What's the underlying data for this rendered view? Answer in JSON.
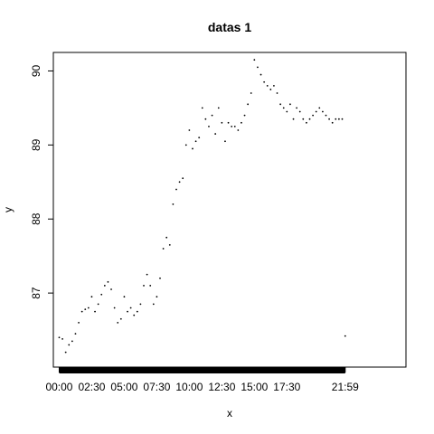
{
  "chart_data": {
    "type": "scatter",
    "title": "datas 1",
    "xlabel": "x",
    "ylabel": "y",
    "ylim": [
      86.0,
      90.25
    ],
    "xlim_hours": [
      -0.45,
      26.65
    ],
    "y_ticks": [
      87,
      88,
      89,
      90
    ],
    "x_ticks": [
      {
        "label": "00:00",
        "hour": 0
      },
      {
        "label": "02:30",
        "hour": 2.5
      },
      {
        "label": "05:00",
        "hour": 5
      },
      {
        "label": "07:30",
        "hour": 7.5
      },
      {
        "label": "10:00",
        "hour": 10
      },
      {
        "label": "12:30",
        "hour": 12.5
      },
      {
        "label": "15:00",
        "hour": 15
      },
      {
        "label": "17:30",
        "hour": 17.5
      },
      {
        "label": "21:59",
        "hour": 21.98
      }
    ],
    "rug": {
      "from_hour": 0,
      "to_hour": 21.98
    },
    "series": [
      {
        "x_hours": [
          0.0,
          0.25,
          0.5,
          0.75,
          1.0,
          1.25,
          1.5,
          1.75,
          2.0,
          2.25,
          2.5,
          2.75,
          3.0,
          3.25,
          3.5,
          3.75,
          4.0,
          4.25,
          4.5,
          4.75,
          5.0,
          5.25,
          5.5,
          5.75,
          6.0,
          6.25,
          6.5,
          6.75,
          7.0,
          7.25,
          7.5,
          7.75,
          8.0,
          8.25,
          8.5,
          8.75,
          9.0,
          9.25,
          9.5,
          9.75,
          10.0,
          10.25,
          10.5,
          10.75,
          11.0,
          11.25,
          11.5,
          11.75,
          12.0,
          12.25,
          12.5,
          12.75,
          13.0,
          13.25,
          13.5,
          13.75,
          14.0,
          14.25,
          14.5,
          14.75,
          15.0,
          15.25,
          15.5,
          15.75,
          16.0,
          16.25,
          16.5,
          16.75,
          17.0,
          17.25,
          17.5,
          17.75,
          18.0,
          18.25,
          18.5,
          18.75,
          19.0,
          19.25,
          19.5,
          19.75,
          20.0,
          20.25,
          20.5,
          20.75,
          21.0,
          21.25,
          21.5,
          21.75,
          21.98
        ],
        "y": [
          86.4,
          86.38,
          86.2,
          86.3,
          86.35,
          86.45,
          86.6,
          86.75,
          86.78,
          86.8,
          86.95,
          86.75,
          86.85,
          86.98,
          87.1,
          87.15,
          87.05,
          86.8,
          86.6,
          86.65,
          86.95,
          86.75,
          86.8,
          86.7,
          86.75,
          86.85,
          87.1,
          87.25,
          87.1,
          86.85,
          86.95,
          87.2,
          87.6,
          87.75,
          87.65,
          88.2,
          88.4,
          88.5,
          88.55,
          89.0,
          89.2,
          88.95,
          89.05,
          89.1,
          89.5,
          89.35,
          89.25,
          89.4,
          89.15,
          89.5,
          89.3,
          89.05,
          89.3,
          89.25,
          89.25,
          89.2,
          89.3,
          89.4,
          89.55,
          89.7,
          90.15,
          90.05,
          89.95,
          89.85,
          89.8,
          89.75,
          89.8,
          89.7,
          89.55,
          89.5,
          89.45,
          89.55,
          89.35,
          89.5,
          89.45,
          89.35,
          89.3,
          89.35,
          89.4,
          89.45,
          89.5,
          89.45,
          89.4,
          89.35,
          89.3,
          89.35,
          89.35,
          89.35,
          86.42
        ]
      }
    ]
  }
}
